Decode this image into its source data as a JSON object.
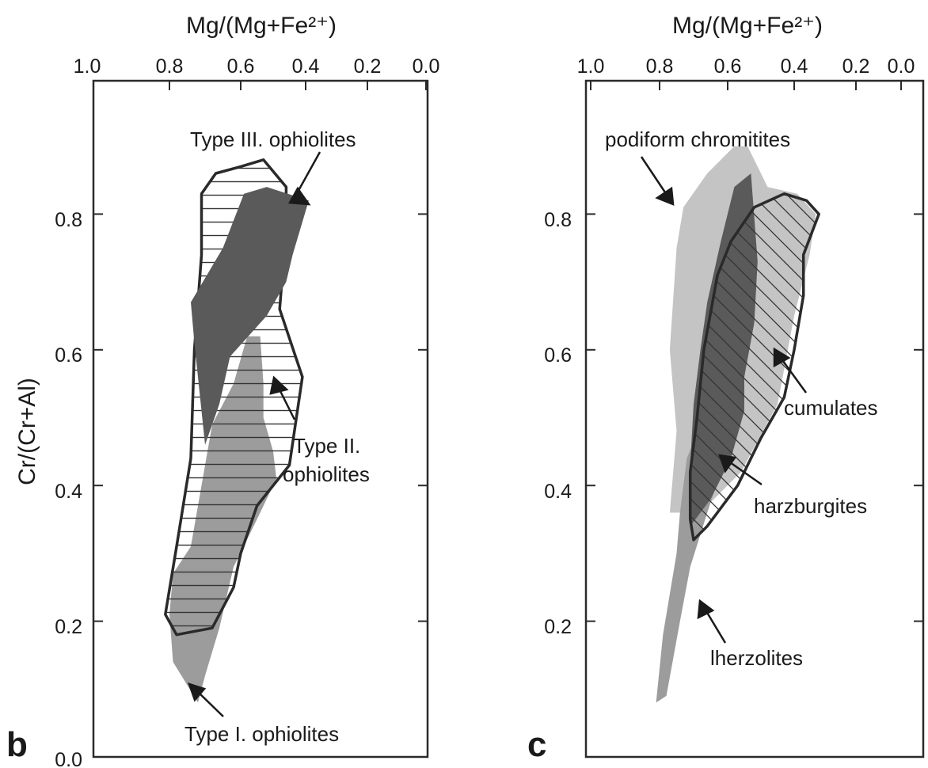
{
  "figure": {
    "panels": [
      {
        "panel_label": "b",
        "x_axis_title": "Mg/(Mg+Fe²⁺)",
        "y_axis_title": "Cr/(Cr+Al)",
        "x_tick_labels": [
          "1.0",
          "0.8",
          "0.6",
          "0.4",
          "0.2",
          "0.0"
        ],
        "y_tick_labels": [
          "0.0",
          "0.2",
          "0.4",
          "0.6",
          "0.8"
        ],
        "annotations": [
          "Type III. ophiolites",
          "Type II.",
          "ophiolites",
          "Type I. ophiolites"
        ]
      },
      {
        "panel_label": "c",
        "x_axis_title": "Mg/(Mg+Fe²⁺)",
        "y_axis_title": "",
        "x_tick_labels": [
          "1.0",
          "0.8",
          "0.6",
          "0.4",
          "0.2",
          "0.0"
        ],
        "y_tick_labels": [
          "0.2",
          "0.4",
          "0.6",
          "0.8"
        ],
        "annotations": [
          "podiform chromitites",
          "cumulates",
          "harzburgites",
          "lherzolites"
        ]
      }
    ]
  },
  "colors": {
    "light_gray_fill": "#c4c4c4",
    "medium_gray_fill": "#9c9c9c",
    "dark_gray_fill": "#5a5a5a",
    "outline": "#2a2a2a",
    "hatch": "#333333"
  },
  "chart_data": [
    {
      "type": "scatter",
      "panel": "b",
      "xlabel": "Mg/(Mg+Fe²⁺)",
      "ylabel": "Cr/(Cr+Al)",
      "xlim": [
        1.0,
        0.0
      ],
      "ylim": [
        0.0,
        1.0
      ],
      "x_reversed": true,
      "grid": false,
      "regions": [
        {
          "name": "Type I. ophiolites",
          "fill": "medium_gray_fill",
          "outline": [
            [
              0.72,
              0.08
            ],
            [
              0.79,
              0.14
            ],
            [
              0.8,
              0.21
            ],
            [
              0.79,
              0.27
            ],
            [
              0.74,
              0.31
            ],
            [
              0.72,
              0.37
            ],
            [
              0.7,
              0.43
            ],
            [
              0.68,
              0.49
            ],
            [
              0.62,
              0.55
            ],
            [
              0.58,
              0.62
            ],
            [
              0.54,
              0.62
            ],
            [
              0.53,
              0.55
            ],
            [
              0.53,
              0.5
            ],
            [
              0.5,
              0.45
            ],
            [
              0.49,
              0.41
            ],
            [
              0.55,
              0.35
            ],
            [
              0.62,
              0.28
            ],
            [
              0.66,
              0.19
            ],
            [
              0.7,
              0.12
            ]
          ]
        },
        {
          "name": "Type II. ophiolites",
          "fill": "hatch-horizontal",
          "outline": [
            [
              0.78,
              0.18
            ],
            [
              0.81,
              0.21
            ],
            [
              0.78,
              0.31
            ],
            [
              0.74,
              0.44
            ],
            [
              0.73,
              0.6
            ],
            [
              0.71,
              0.74
            ],
            [
              0.71,
              0.83
            ],
            [
              0.67,
              0.86
            ],
            [
              0.6,
              0.87
            ],
            [
              0.53,
              0.88
            ],
            [
              0.46,
              0.84
            ],
            [
              0.46,
              0.78
            ],
            [
              0.48,
              0.66
            ],
            [
              0.41,
              0.56
            ],
            [
              0.45,
              0.43
            ],
            [
              0.55,
              0.37
            ],
            [
              0.6,
              0.3
            ],
            [
              0.62,
              0.25
            ],
            [
              0.68,
              0.19
            ]
          ]
        },
        {
          "name": "Type III. ophiolites",
          "fill": "dark_gray_fill",
          "outline": [
            [
              0.7,
              0.46
            ],
            [
              0.66,
              0.52
            ],
            [
              0.63,
              0.59
            ],
            [
              0.52,
              0.65
            ],
            [
              0.46,
              0.7
            ],
            [
              0.44,
              0.74
            ],
            [
              0.39,
              0.82
            ],
            [
              0.52,
              0.84
            ],
            [
              0.59,
              0.83
            ],
            [
              0.65,
              0.75
            ],
            [
              0.74,
              0.67
            ],
            [
              0.73,
              0.61
            ]
          ]
        }
      ]
    },
    {
      "type": "scatter",
      "panel": "c",
      "xlabel": "Mg/(Mg+Fe²⁺)",
      "ylabel": "",
      "xlim": [
        1.0,
        0.0
      ],
      "ylim": [
        0.0,
        1.0
      ],
      "x_reversed": true,
      "grid": false,
      "regions": [
        {
          "name": "podiform chromitites",
          "fill": "light_gray_fill",
          "outline": [
            [
              0.77,
              0.36
            ],
            [
              0.75,
              0.48
            ],
            [
              0.77,
              0.6
            ],
            [
              0.75,
              0.75
            ],
            [
              0.73,
              0.81
            ],
            [
              0.66,
              0.86
            ],
            [
              0.58,
              0.9
            ],
            [
              0.54,
              0.9
            ],
            [
              0.48,
              0.84
            ],
            [
              0.39,
              0.83
            ],
            [
              0.33,
              0.8
            ],
            [
              0.35,
              0.74
            ],
            [
              0.4,
              0.65
            ],
            [
              0.45,
              0.52
            ],
            [
              0.56,
              0.42
            ],
            [
              0.68,
              0.36
            ]
          ]
        },
        {
          "name": "lherzolites",
          "fill": "medium_gray_fill",
          "outline": [
            [
              0.81,
              0.08
            ],
            [
              0.78,
              0.09
            ],
            [
              0.74,
              0.2
            ],
            [
              0.71,
              0.28
            ],
            [
              0.66,
              0.36
            ],
            [
              0.6,
              0.45
            ],
            [
              0.57,
              0.53
            ],
            [
              0.62,
              0.55
            ],
            [
              0.68,
              0.49
            ],
            [
              0.72,
              0.44
            ],
            [
              0.74,
              0.36
            ],
            [
              0.75,
              0.3
            ],
            [
              0.79,
              0.18
            ]
          ]
        },
        {
          "name": "harzburgites",
          "fill": "dark_gray_fill",
          "outline": [
            [
              0.71,
              0.34
            ],
            [
              0.65,
              0.38
            ],
            [
              0.59,
              0.44
            ],
            [
              0.55,
              0.51
            ],
            [
              0.55,
              0.56
            ],
            [
              0.52,
              0.64
            ],
            [
              0.51,
              0.73
            ],
            [
              0.53,
              0.86
            ],
            [
              0.58,
              0.84
            ],
            [
              0.62,
              0.76
            ],
            [
              0.66,
              0.67
            ],
            [
              0.68,
              0.6
            ],
            [
              0.7,
              0.52
            ],
            [
              0.71,
              0.43
            ]
          ]
        },
        {
          "name": "cumulates",
          "fill": "hatch-diagonal",
          "outline": [
            [
              0.7,
              0.32
            ],
            [
              0.66,
              0.34
            ],
            [
              0.57,
              0.4
            ],
            [
              0.5,
              0.47
            ],
            [
              0.43,
              0.53
            ],
            [
              0.4,
              0.6
            ],
            [
              0.37,
              0.68
            ],
            [
              0.37,
              0.74
            ],
            [
              0.32,
              0.8
            ],
            [
              0.36,
              0.82
            ],
            [
              0.43,
              0.83
            ],
            [
              0.52,
              0.81
            ],
            [
              0.59,
              0.76
            ],
            [
              0.63,
              0.71
            ],
            [
              0.67,
              0.6
            ],
            [
              0.69,
              0.5
            ],
            [
              0.71,
              0.42
            ],
            [
              0.71,
              0.35
            ]
          ]
        }
      ]
    }
  ]
}
